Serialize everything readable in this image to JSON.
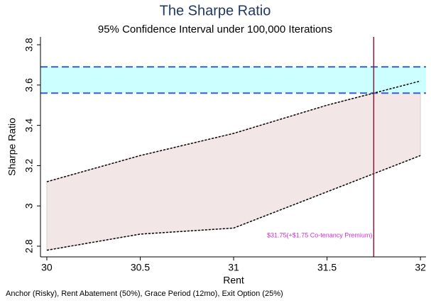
{
  "chart_data": {
    "type": "band-line",
    "title": "The Sharpe Ratio",
    "subtitle": "95% Confidence Interval under 100,000 Iterations",
    "x_label": "Rent",
    "y_label": "Sharpe Ratio",
    "note": "Anchor (Risky), Rent Abatement (50%), Grace Period (12mo), Exit Option (25%)",
    "x": [
      30,
      30.5,
      31,
      31.5,
      32
    ],
    "lower": [
      2.78,
      2.86,
      2.89,
      3.07,
      3.25
    ],
    "upper": [
      3.12,
      3.25,
      3.36,
      3.5,
      3.62
    ],
    "interval_color": "#f3e6e6",
    "band": [
      3.56,
      3.69
    ],
    "band_color": "#ccffff",
    "band_line_color": "#3a5fcd",
    "vline": 31.75,
    "vline_color": "#8b1a3a",
    "annotation": "$31.75(+$1.75 Co-tenancy Premium)",
    "annotation_color": "#cc33cc",
    "xlim": [
      29.966,
      32.03
    ],
    "ylim": [
      2.747,
      3.839
    ],
    "xticks": [
      30,
      30.5,
      31,
      31.5,
      32
    ],
    "yticks": [
      2.8,
      3,
      3.2,
      3.4,
      3.6,
      3.8
    ]
  }
}
